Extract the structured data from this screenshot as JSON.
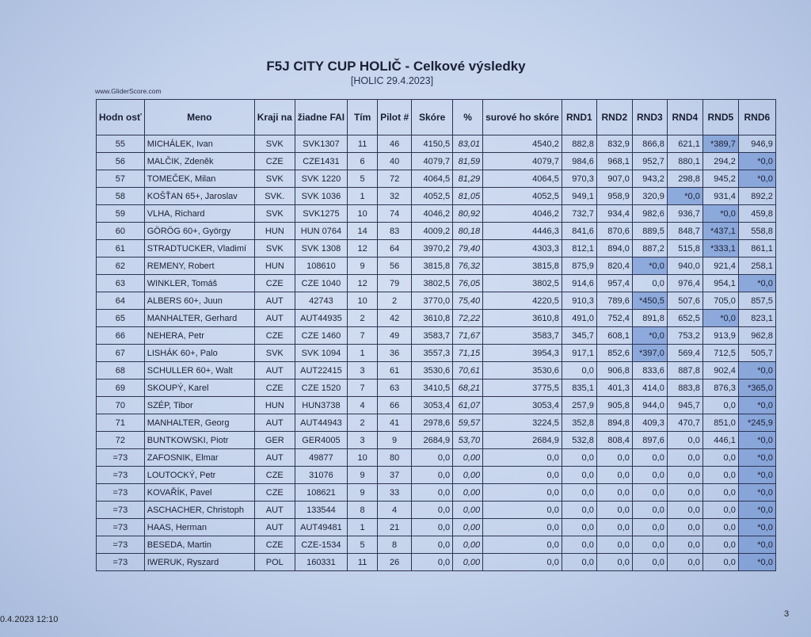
{
  "header": {
    "title": "F5J CITY CUP HOLIČ - Celkové výsledky",
    "subtitle": "[HOLIC 29.4.2023]",
    "site": "www.GliderScore.com"
  },
  "table": {
    "columns": [
      "Hodn osť",
      "Meno",
      "Kraji na",
      "žiadne FAI",
      "Tím",
      "Pilot #",
      "Skóre",
      "%",
      "surové ho skóre",
      "RND1",
      "RND2",
      "RND3",
      "RND4",
      "RND5",
      "RND6"
    ],
    "rows": [
      [
        "55",
        "MICHÁLEK, Ivan",
        "SVK",
        "SVK1307",
        "11",
        "46",
        "4150,5",
        "83,01",
        "4540,2",
        "882,8",
        "832,9",
        "866,8",
        "621,1",
        "*389,7",
        "946,9"
      ],
      [
        "56",
        "MALČIK, Zdeněk",
        "CZE",
        "CZE1431",
        "6",
        "40",
        "4079,7",
        "81,59",
        "4079,7",
        "984,6",
        "968,1",
        "952,7",
        "880,1",
        "294,2",
        "*0,0"
      ],
      [
        "57",
        "TOMEČEK, Milan",
        "SVK",
        "SVK 1220",
        "5",
        "72",
        "4064,5",
        "81,29",
        "4064,5",
        "970,3",
        "907,0",
        "943,2",
        "298,8",
        "945,2",
        "*0,0"
      ],
      [
        "58",
        "KOŠŤAN   65+, Jaroslav",
        "SVK.",
        "SVK 1036",
        "1",
        "32",
        "4052,5",
        "81,05",
        "4052,5",
        "949,1",
        "958,9",
        "320,9",
        "*0,0",
        "931,4",
        "892,2"
      ],
      [
        "59",
        "VLHA, Richard",
        "SVK",
        "SVK1275",
        "10",
        "74",
        "4046,2",
        "80,92",
        "4046,2",
        "732,7",
        "934,4",
        "982,6",
        "936,7",
        "*0,0",
        "459,8"
      ],
      [
        "60",
        "GÖRÖG     60+, György",
        "HUN",
        "HUN 0764",
        "14",
        "83",
        "4009,2",
        "80,18",
        "4446,3",
        "841,6",
        "870,6",
        "889,5",
        "848,7",
        "*437,1",
        "558,8"
      ],
      [
        "61",
        "STRADTUCKER, Vladimí",
        "SVK",
        "SVK 1308",
        "12",
        "64",
        "3970,2",
        "79,40",
        "4303,3",
        "812,1",
        "894,0",
        "887,2",
        "515,8",
        "*333,1",
        "861,1"
      ],
      [
        "62",
        "REMENY, Robert",
        "HUN",
        "108610",
        "9",
        "56",
        "3815,8",
        "76,32",
        "3815,8",
        "875,9",
        "820,4",
        "*0,0",
        "940,0",
        "921,4",
        "258,1"
      ],
      [
        "63",
        "WINKLER, Tomáš",
        "CZE",
        "CZE 1040",
        "12",
        "79",
        "3802,5",
        "76,05",
        "3802,5",
        "914,6",
        "957,4",
        "0,0",
        "976,4",
        "954,1",
        "*0,0"
      ],
      [
        "64",
        "ALBERS   60+, Juun",
        "AUT",
        "42743",
        "10",
        "2",
        "3770,0",
        "75,40",
        "4220,5",
        "910,3",
        "789,6",
        "*450,5",
        "507,6",
        "705,0",
        "857,5"
      ],
      [
        "65",
        "MANHALTER, Gerhard",
        "AUT",
        "AUT44935",
        "2",
        "42",
        "3610,8",
        "72,22",
        "3610,8",
        "491,0",
        "752,4",
        "891,8",
        "652,5",
        "*0,0",
        "823,1"
      ],
      [
        "66",
        "NEHERA, Petr",
        "CZE",
        "CZE 1460",
        "7",
        "49",
        "3583,7",
        "71,67",
        "3583,7",
        "345,7",
        "608,1",
        "*0,0",
        "753,2",
        "913,9",
        "962,8"
      ],
      [
        "67",
        "LISHÁK    60+, Palo",
        "SVK",
        "SVK 1094",
        "1",
        "36",
        "3557,3",
        "71,15",
        "3954,3",
        "917,1",
        "852,6",
        "*397,0",
        "569,4",
        "712,5",
        "505,7"
      ],
      [
        "68",
        "SCHULLER      60+, Walt",
        "AUT",
        "AUT22415",
        "3",
        "61",
        "3530,6",
        "70,61",
        "3530,6",
        "0,0",
        "906,8",
        "833,6",
        "887,8",
        "902,4",
        "*0,0"
      ],
      [
        "69",
        "SKOUPÝ, Karel",
        "CZE",
        "CZE 1520",
        "7",
        "63",
        "3410,5",
        "68,21",
        "3775,5",
        "835,1",
        "401,3",
        "414,0",
        "883,8",
        "876,3",
        "*365,0"
      ],
      [
        "70",
        "SZÉP, Tibor",
        "HUN",
        "HUN3738",
        "4",
        "66",
        "3053,4",
        "61,07",
        "3053,4",
        "257,9",
        "905,8",
        "944,0",
        "945,7",
        "0,0",
        "*0,0"
      ],
      [
        "71",
        "MANHALTER, Georg",
        "AUT",
        "AUT44943",
        "2",
        "41",
        "2978,6",
        "59,57",
        "3224,5",
        "352,8",
        "894,8",
        "409,3",
        "470,7",
        "851,0",
        "*245,9"
      ],
      [
        "72",
        "BUNTKOWSKI, Piotr",
        "GER",
        "GER4005",
        "3",
        "9",
        "2684,9",
        "53,70",
        "2684,9",
        "532,8",
        "808,4",
        "897,6",
        "0,0",
        "446,1",
        "*0,0"
      ],
      [
        "=73",
        "ZAFOSNIK, Elmar",
        "AUT",
        "49877",
        "10",
        "80",
        "0,0",
        "0,00",
        "0,0",
        "0,0",
        "0,0",
        "0,0",
        "0,0",
        "0,0",
        "*0,0"
      ],
      [
        "=73",
        "LOUTOCKÝ, Petr",
        "CZE",
        "31076",
        "9",
        "37",
        "0,0",
        "0,00",
        "0,0",
        "0,0",
        "0,0",
        "0,0",
        "0,0",
        "0,0",
        "*0,0"
      ],
      [
        "=73",
        "KOVAŘÍK, Pavel",
        "CZE",
        "108621",
        "9",
        "33",
        "0,0",
        "0,00",
        "0,0",
        "0,0",
        "0,0",
        "0,0",
        "0,0",
        "0,0",
        "*0,0"
      ],
      [
        "=73",
        "ASCHACHER, Christoph",
        "AUT",
        "133544",
        "8",
        "4",
        "0,0",
        "0,00",
        "0,0",
        "0,0",
        "0,0",
        "0,0",
        "0,0",
        "0,0",
        "*0,0"
      ],
      [
        "=73",
        "HAAS, Herman",
        "AUT",
        "AUT49481",
        "1",
        "21",
        "0,0",
        "0,00",
        "0,0",
        "0,0",
        "0,0",
        "0,0",
        "0,0",
        "0,0",
        "*0,0"
      ],
      [
        "=73",
        "BESEDA, Martin",
        "CZE",
        "CZE-1534",
        "5",
        "8",
        "0,0",
        "0,00",
        "0,0",
        "0,0",
        "0,0",
        "0,0",
        "0,0",
        "0,0",
        "*0,0"
      ],
      [
        "=73",
        "IWERUK, Ryszard",
        "POL",
        "160331",
        "11",
        "26",
        "0,0",
        "0,00",
        "0,0",
        "0,0",
        "0,0",
        "0,0",
        "0,0",
        "0,0",
        "*0,0"
      ]
    ]
  },
  "footer": {
    "printed": "0.4.2023 12:10",
    "page": "3"
  },
  "colors": {
    "paper": "#c8d6ee",
    "dropped_score": "#7f9fd6"
  }
}
